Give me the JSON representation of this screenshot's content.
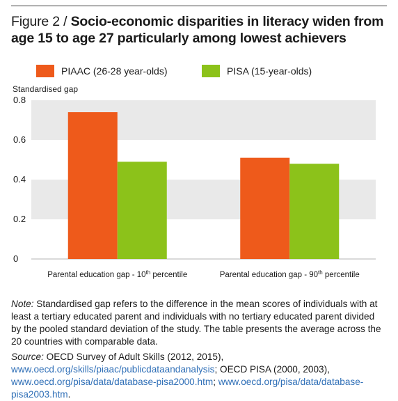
{
  "figure": {
    "prefix": "Figure 2 / ",
    "title": "Socio-economic disparities in literacy widen from age 15 to age 27 particularly among lowest achievers"
  },
  "colors": {
    "piaac": "#ee5a1b",
    "pisa": "#8cc21a",
    "band": "#e9e9e9",
    "link": "#2f6fb7"
  },
  "chart_data": {
    "type": "bar",
    "title": "",
    "ylabel": "Standardised gap",
    "xlabel": "",
    "ylim": [
      0,
      0.8
    ],
    "yticks": [
      "0",
      "0.2",
      "0.4",
      "0.6",
      "0.8"
    ],
    "yticks_values": [
      0,
      0.2,
      0.4,
      0.6,
      0.8
    ],
    "grid": "alternating horizontal bands",
    "legend_position": "top",
    "categories": [
      {
        "pre": "Parental education gap - 10",
        "sup": "th",
        "post": " percentile"
      },
      {
        "pre": "Parental education gap - 90",
        "sup": "th",
        "post": " percentile"
      }
    ],
    "series": [
      {
        "name": "PIAAC (26-28 year-olds)",
        "color": "#ee5a1b",
        "values": [
          0.74,
          0.51
        ]
      },
      {
        "name": "PISA (15-year-olds)",
        "color": "#8cc21a",
        "values": [
          0.49,
          0.48
        ]
      }
    ]
  },
  "note": {
    "label": "Note:",
    "text": " Standardised gap refers to the difference in the mean scores of individuals with at least a tertiary educated parent and individuals with no tertiary educated parent divided by the pooled standard deviation of the study. The table presents the average across the 20 countries with comparable data."
  },
  "source": {
    "label": "Source:",
    "text1": " OECD Survey of Adult Skills (2012, 2015), ",
    "link1": "www.oecd.org/skills/piaac/publicdataandanalysis",
    "text2": "; OECD PISA (2000, 2003), ",
    "link2": "www.oecd.org/pisa/data/database-pisa2000.htm",
    "text3": "; ",
    "link3": "www.oecd.org/pisa/data/database-pisa2003.htm",
    "text4": "."
  }
}
